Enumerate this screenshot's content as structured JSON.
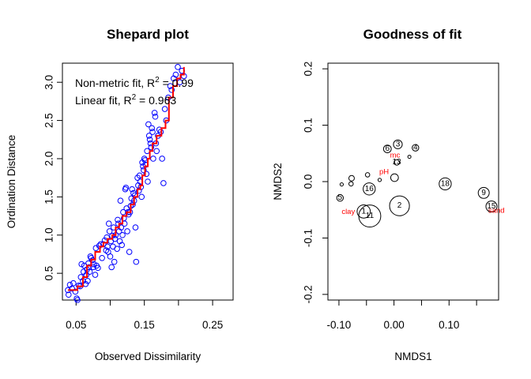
{
  "chart_data": [
    {
      "type": "scatter",
      "title": "Shepard plot",
      "xlabel": "Observed Dissimilarity",
      "ylabel": "Ordination Distance",
      "xlim": [
        0.03,
        0.28
      ],
      "ylim": [
        0.15,
        3.25
      ],
      "xticks": [
        "0.05",
        "0.15",
        "0.25"
      ],
      "yticks": [
        "0.5",
        "1.0",
        "1.5",
        "2.0",
        "2.5",
        "3.0"
      ],
      "grid": false,
      "annotations": {
        "nonmetric_label": "Non-metric fit, R",
        "nonmetric_value": " = 0.99",
        "linear_label": "Linear fit, R",
        "linear_value": " = 0.963",
        "superscript": "2"
      },
      "series": [
        {
          "marker": "open-circle",
          "color": "#0000ff",
          "points": [
            [
              0.038,
              0.28
            ],
            [
              0.039,
              0.22
            ],
            [
              0.041,
              0.35
            ],
            [
              0.044,
              0.3
            ],
            [
              0.046,
              0.37
            ],
            [
              0.049,
              0.26
            ],
            [
              0.051,
              0.17
            ],
            [
              0.052,
              0.15
            ],
            [
              0.054,
              0.34
            ],
            [
              0.056,
              0.33
            ],
            [
              0.057,
              0.45
            ],
            [
              0.058,
              0.62
            ],
            [
              0.06,
              0.4
            ],
            [
              0.061,
              0.52
            ],
            [
              0.062,
              0.6
            ],
            [
              0.064,
              0.36
            ],
            [
              0.065,
              0.48
            ],
            [
              0.066,
              0.55
            ],
            [
              0.067,
              0.4
            ],
            [
              0.068,
              0.63
            ],
            [
              0.069,
              0.58
            ],
            [
              0.07,
              0.52
            ],
            [
              0.071,
              0.72
            ],
            [
              0.072,
              0.7
            ],
            [
              0.074,
              0.67
            ],
            [
              0.075,
              0.58
            ],
            [
              0.076,
              0.62
            ],
            [
              0.078,
              0.48
            ],
            [
              0.079,
              0.83
            ],
            [
              0.08,
              0.6
            ],
            [
              0.082,
              0.57
            ],
            [
              0.084,
              0.86
            ],
            [
              0.086,
              0.88
            ],
            [
              0.088,
              0.7
            ],
            [
              0.09,
              0.88
            ],
            [
              0.092,
              0.93
            ],
            [
              0.094,
              0.8
            ],
            [
              0.095,
              0.97
            ],
            [
              0.096,
              0.85
            ],
            [
              0.097,
              0.78
            ],
            [
              0.098,
              1.15
            ],
            [
              0.099,
              1.05
            ],
            [
              0.1,
              0.72
            ],
            [
              0.101,
              0.92
            ],
            [
              0.102,
              0.58
            ],
            [
              0.103,
              0.99
            ],
            [
              0.104,
              0.85
            ],
            [
              0.105,
              1.1
            ],
            [
              0.106,
              0.65
            ],
            [
              0.107,
              0.95
            ],
            [
              0.108,
              1.0
            ],
            [
              0.11,
              0.82
            ],
            [
              0.111,
              1.2
            ],
            [
              0.112,
              1.15
            ],
            [
              0.113,
              1.05
            ],
            [
              0.114,
              0.92
            ],
            [
              0.115,
              1.45
            ],
            [
              0.116,
              1.1
            ],
            [
              0.117,
              0.87
            ],
            [
              0.118,
              1.0
            ],
            [
              0.119,
              1.3
            ],
            [
              0.12,
              1.22
            ],
            [
              0.121,
              1.15
            ],
            [
              0.122,
              1.6
            ],
            [
              0.123,
              1.62
            ],
            [
              0.124,
              1.35
            ],
            [
              0.125,
              1.05
            ],
            [
              0.126,
              1.3
            ],
            [
              0.127,
              1.27
            ],
            [
              0.128,
              0.78
            ],
            [
              0.129,
              1.3
            ],
            [
              0.13,
              1.38
            ],
            [
              0.131,
              1.48
            ],
            [
              0.132,
              1.6
            ],
            [
              0.133,
              1.4
            ],
            [
              0.134,
              1.55
            ],
            [
              0.135,
              1.45
            ],
            [
              0.136,
              1.52
            ],
            [
              0.137,
              1.1
            ],
            [
              0.138,
              0.65
            ],
            [
              0.14,
              1.75
            ],
            [
              0.141,
              1.65
            ],
            [
              0.142,
              1.58
            ],
            [
              0.143,
              1.78
            ],
            [
              0.144,
              1.7
            ],
            [
              0.145,
              1.63
            ],
            [
              0.146,
              1.5
            ],
            [
              0.147,
              1.95
            ],
            [
              0.148,
              1.9
            ],
            [
              0.149,
              1.85
            ],
            [
              0.15,
              2.0
            ],
            [
              0.151,
              1.98
            ],
            [
              0.152,
              1.92
            ],
            [
              0.153,
              1.8
            ],
            [
              0.154,
              2.1
            ],
            [
              0.155,
              1.7
            ],
            [
              0.156,
              2.45
            ],
            [
              0.157,
              2.3
            ],
            [
              0.158,
              2.25
            ],
            [
              0.159,
              2.2
            ],
            [
              0.16,
              2.15
            ],
            [
              0.161,
              2.4
            ],
            [
              0.162,
              2.35
            ],
            [
              0.163,
              2.0
            ],
            [
              0.165,
              2.6
            ],
            [
              0.166,
              2.55
            ],
            [
              0.167,
              2.2
            ],
            [
              0.168,
              2.1
            ],
            [
              0.17,
              2.3
            ],
            [
              0.172,
              2.38
            ],
            [
              0.174,
              2.35
            ],
            [
              0.176,
              2.0
            ],
            [
              0.178,
              1.68
            ],
            [
              0.18,
              2.65
            ],
            [
              0.182,
              2.5
            ],
            [
              0.185,
              2.8
            ],
            [
              0.188,
              2.95
            ],
            [
              0.19,
              2.9
            ],
            [
              0.193,
              3.05
            ],
            [
              0.196,
              3.1
            ],
            [
              0.199,
              3.2
            ],
            [
              0.202,
              3.0
            ],
            [
              0.205,
              3.15
            ],
            [
              0.208,
              3.08
            ]
          ]
        },
        {
          "name": "",
          "type": "step",
          "color": "#ff0000",
          "points": [
            [
              0.038,
              0.28
            ],
            [
              0.052,
              0.33
            ],
            [
              0.06,
              0.45
            ],
            [
              0.066,
              0.6
            ],
            [
              0.072,
              0.68
            ],
            [
              0.078,
              0.78
            ],
            [
              0.085,
              0.85
            ],
            [
              0.09,
              0.9
            ],
            [
              0.096,
              0.95
            ],
            [
              0.103,
              1.0
            ],
            [
              0.108,
              1.1
            ],
            [
              0.113,
              1.15
            ],
            [
              0.118,
              1.25
            ],
            [
              0.124,
              1.3
            ],
            [
              0.13,
              1.4
            ],
            [
              0.135,
              1.5
            ],
            [
              0.14,
              1.6
            ],
            [
              0.144,
              1.65
            ],
            [
              0.147,
              1.78
            ],
            [
              0.151,
              1.9
            ],
            [
              0.155,
              2.0
            ],
            [
              0.158,
              2.1
            ],
            [
              0.162,
              2.2
            ],
            [
              0.168,
              2.3
            ],
            [
              0.175,
              2.4
            ],
            [
              0.181,
              2.5
            ],
            [
              0.186,
              2.8
            ],
            [
              0.192,
              2.95
            ],
            [
              0.198,
              3.05
            ],
            [
              0.203,
              3.1
            ],
            [
              0.208,
              3.2
            ]
          ]
        }
      ]
    },
    {
      "type": "scatter",
      "title": "Goodness of fit",
      "xlabel": "NMDS1",
      "ylabel": "NMDS2",
      "xlim": [
        -0.12,
        0.19
      ],
      "ylim": [
        -0.21,
        0.21
      ],
      "xticks": [
        "-0.10",
        "0.00",
        "0.10"
      ],
      "yticks": [
        "-0.2",
        "-0.1",
        "0.0",
        "0.1",
        "0.2"
      ],
      "grid": false,
      "sites": [
        {
          "label": "5",
          "x": -0.098,
          "y": -0.029,
          "r": 0.006
        },
        {
          "label": "",
          "x": -0.095,
          "y": -0.005,
          "r": 0.003
        },
        {
          "label": "",
          "x": -0.078,
          "y": -0.004,
          "r": 0.004
        },
        {
          "label": "",
          "x": -0.077,
          "y": 0.006,
          "r": 0.005
        },
        {
          "label": "1",
          "x": -0.055,
          "y": -0.053,
          "r": 0.012
        },
        {
          "label": "11",
          "x": -0.044,
          "y": -0.061,
          "r": 0.02
        },
        {
          "label": "16",
          "x": -0.045,
          "y": -0.013,
          "r": 0.011
        },
        {
          "label": "",
          "x": -0.048,
          "y": 0.012,
          "r": 0.004
        },
        {
          "label": "",
          "x": -0.026,
          "y": 0.003,
          "r": 0.003
        },
        {
          "label": "6",
          "x": -0.012,
          "y": 0.058,
          "r": 0.007
        },
        {
          "label": "3",
          "x": 0.007,
          "y": 0.066,
          "r": 0.008
        },
        {
          "label": "13",
          "x": 0.005,
          "y": 0.034,
          "r": 0.005
        },
        {
          "label": "",
          "x": 0.001,
          "y": 0.007,
          "r": 0.007
        },
        {
          "label": "",
          "x": 0.028,
          "y": 0.044,
          "r": 0.002
        },
        {
          "label": "4",
          "x": 0.039,
          "y": 0.06,
          "r": 0.006
        },
        {
          "label": "2",
          "x": 0.01,
          "y": -0.043,
          "r": 0.018
        },
        {
          "label": "18",
          "x": 0.093,
          "y": -0.004,
          "r": 0.011
        },
        {
          "label": "9",
          "x": 0.163,
          "y": -0.02,
          "r": 0.01
        },
        {
          "label": "15",
          "x": 0.177,
          "y": -0.044,
          "r": 0.01
        }
      ],
      "env_labels": [
        {
          "label": "mc",
          "x": 0.002,
          "y": 0.046
        },
        {
          "label": "pH",
          "x": -0.018,
          "y": 0.017
        },
        {
          "label": "clay",
          "x": -0.083,
          "y": -0.054
        },
        {
          "label": "sand",
          "x": 0.186,
          "y": -0.052
        }
      ]
    }
  ]
}
